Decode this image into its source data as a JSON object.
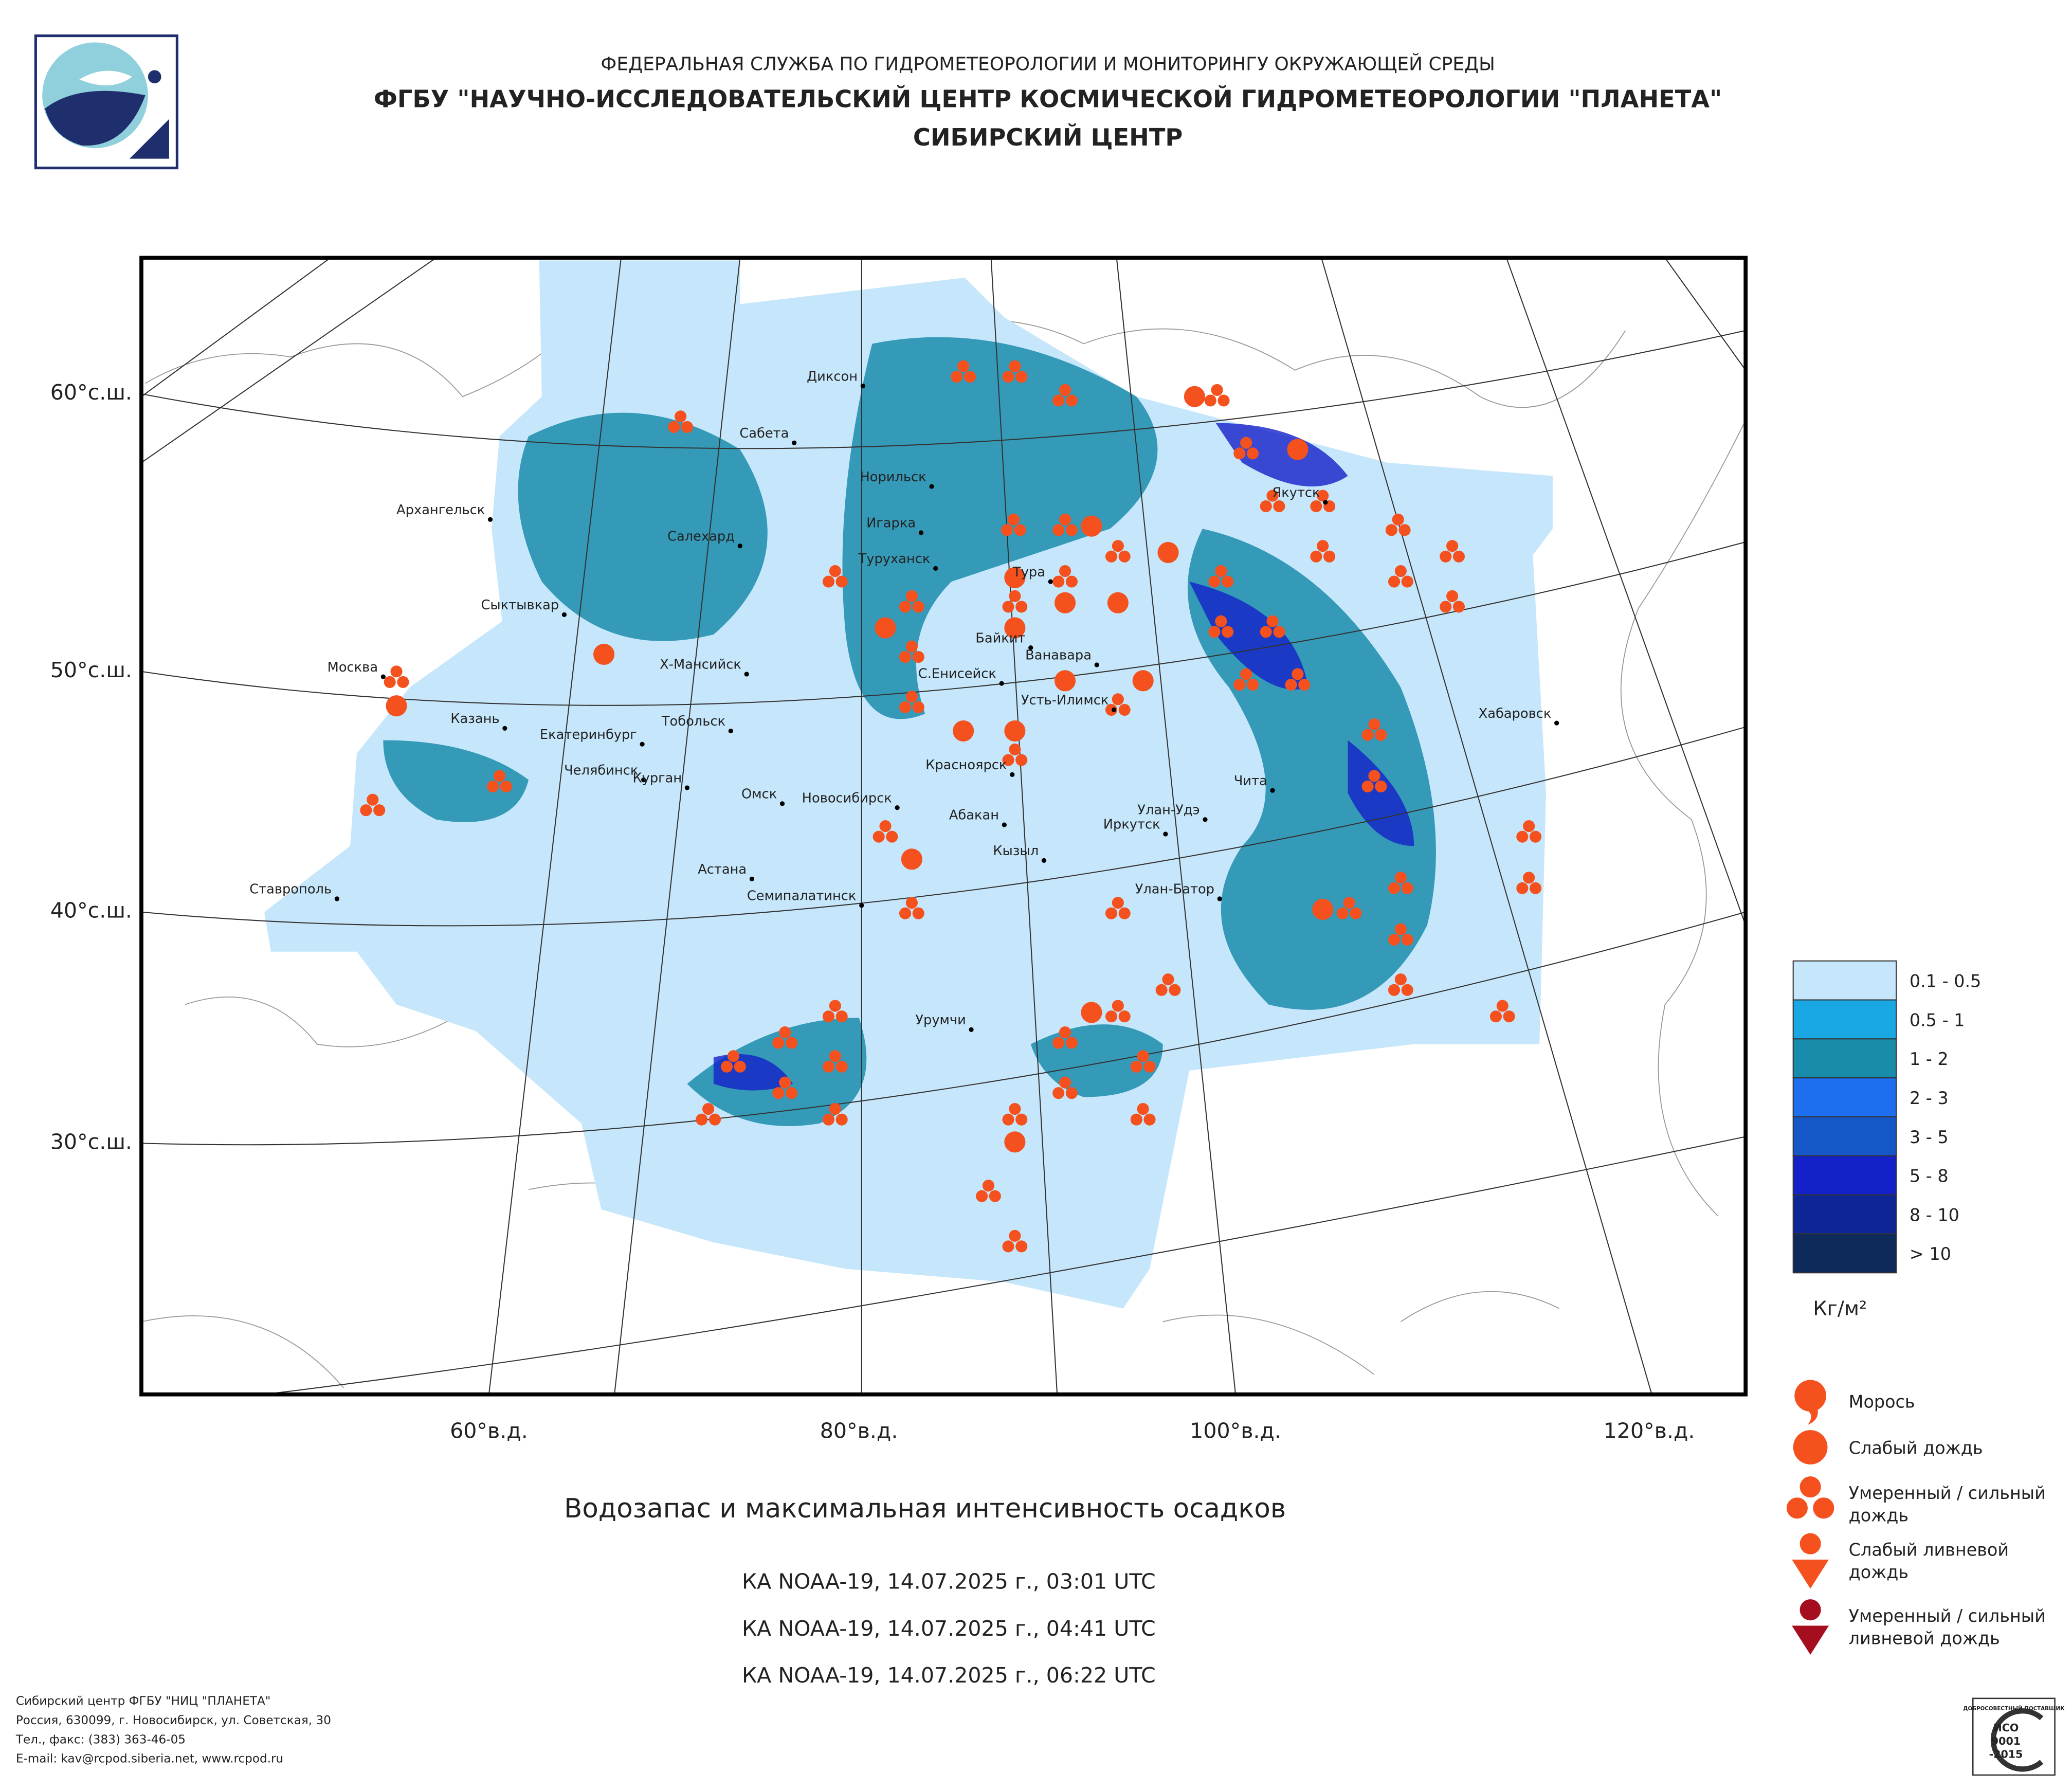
{
  "header": {
    "agency": "ФЕДЕРАЛЬНАЯ СЛУЖБА ПО ГИДРОМЕТЕОРОЛОГИИ И МОНИТОРИНГУ ОКРУЖАЮЩЕЙ СРЕДЫ",
    "institute": "ФГБУ \"НАУЧНО-ИССЛЕДОВАТЕЛЬСКИЙ ЦЕНТР КОСМИЧЕСКОЙ ГИДРОМЕТЕОРОЛОГИИ \"ПЛАНЕТА\"",
    "center": "СИБИРСКИЙ ЦЕНТР"
  },
  "map": {
    "lat_labels": [
      "60°с.ш.",
      "50°с.ш.",
      "40°с.ш.",
      "30°с.ш."
    ],
    "lon_labels": [
      "60°в.д.",
      "80°в.д.",
      "100°в.д.",
      "120°в.д."
    ],
    "cities": [
      "Диксон",
      "Сабета",
      "Норильск",
      "Архангельск",
      "Игарка",
      "Салехард",
      "Туруханск",
      "Тура",
      "Якутск",
      "Сыктывкар",
      "Байкит",
      "Ванавара",
      "Х-Мансийск",
      "Москва",
      "С.Енисейск",
      "Усть-Илимск",
      "Хабаровск",
      "Казань",
      "Тобольск",
      "Екатеринбург",
      "Челябинск",
      "Курган",
      "Красноярск",
      "Чита",
      "Омск",
      "Новосибирск",
      "Улан-Удэ",
      "Абакан",
      "Иркутск",
      "Кызыл",
      "Астана",
      "Ставрополь",
      "Семипалатинск",
      "Улан-Батор",
      "Урумчи"
    ]
  },
  "legend": {
    "scale": [
      "0.1 - 0.5",
      "0.5 - 1",
      "1 - 2",
      "2 - 3",
      "3 - 5",
      "5 - 8",
      "8 - 10",
      "> 10"
    ],
    "colors": [
      "#c6e7fb",
      "#1aa8e4",
      "#1a8cab",
      "#1e6ef0",
      "#1557c8",
      "#1420c8",
      "#0e2596",
      "#0d2a5a"
    ],
    "unit": "Кг/м²",
    "symbols": [
      [
        "Морось"
      ],
      [
        "Слабый дождь"
      ],
      [
        "Умеренный / сильный",
        "дождь"
      ],
      [
        "Слабый ливневой",
        "дождь"
      ],
      [
        "Умеренный / сильный",
        "ливневой дождь"
      ]
    ]
  },
  "title": "Водозапас и максимальная интенсивность осадков",
  "passes": [
    "КА NOAA-19, 14.07.2025 г., 03:01 UTC",
    "КА NOAA-19, 14.07.2025 г., 04:41 UTC",
    "КА NOAA-19, 14.07.2025 г., 06:22 UTC"
  ],
  "footer": [
    "Сибирский центр ФГБУ \"НИЦ \"ПЛАНЕТА\"",
    "Россия, 630099, г. Новосибирск, ул. Советская, 30",
    "Тел., факс: (383) 363-46-05",
    "E-mail: kav@rcpod.siberia.net, www.rcpod.ru"
  ],
  "badge": [
    "ДОБРОСОВЕСТНЫЙ ПОСТАВЩИК",
    "ИСО",
    "9001",
    "-2015"
  ]
}
